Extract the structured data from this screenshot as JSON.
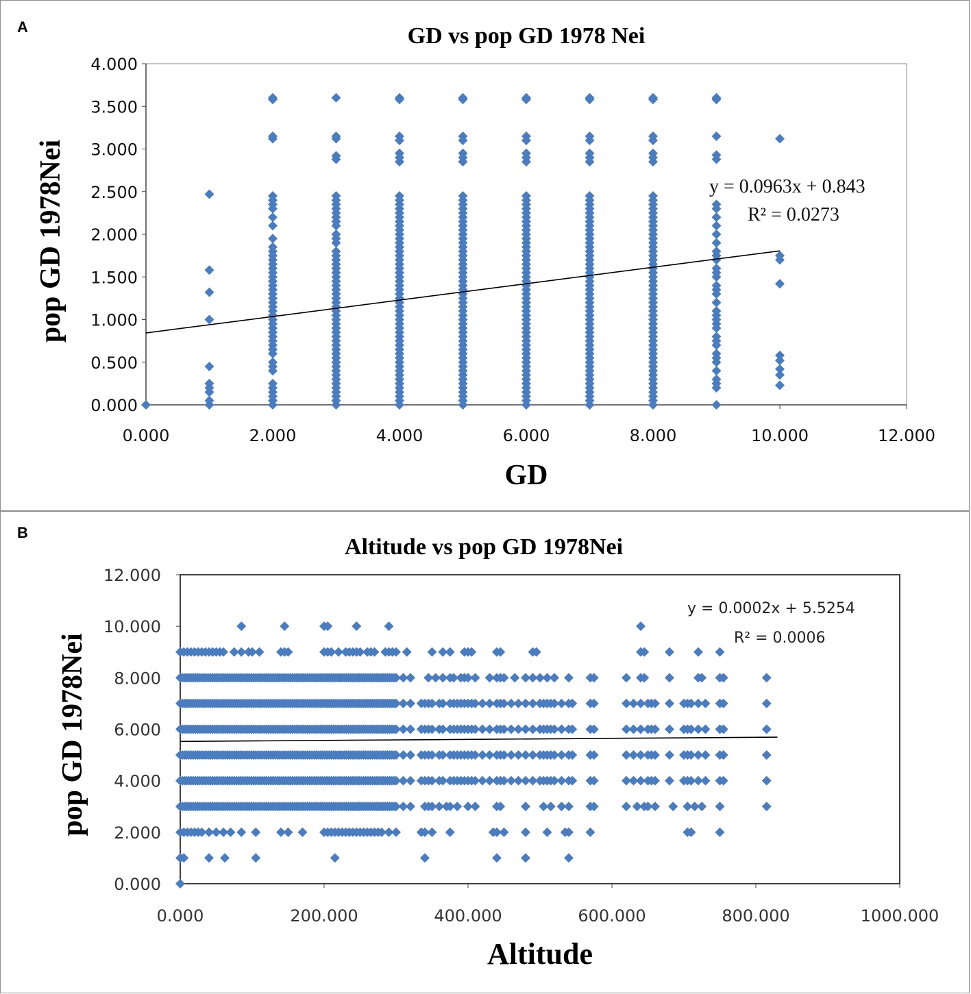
{
  "panels": {
    "a": {
      "letter": "A"
    },
    "b": {
      "letter": "B"
    }
  },
  "colors": {
    "marker": "#4a7cc0",
    "trend": "#000000"
  },
  "chart_data": [
    {
      "type": "scatter",
      "title": "GD vs pop  GD 1978 Nei",
      "xlabel": "GD",
      "ylabel": "pop GD 1978Nei",
      "xlim": [
        0,
        12
      ],
      "ylim": [
        0,
        4
      ],
      "x_ticks": [
        "0.000",
        "2.000",
        "4.000",
        "6.000",
        "8.000",
        "10.000",
        "12.000"
      ],
      "y_ticks": [
        "0.000",
        "0.500",
        "1.000",
        "1.500",
        "2.000",
        "2.500",
        "3.000",
        "3.500",
        "4.000"
      ],
      "equation": "y = 0.0963x   + 0.843",
      "r_squared": "R² = 0.0273",
      "trendline": {
        "slope": 0.0963,
        "intercept": 0.843,
        "x_range": [
          0,
          10
        ]
      },
      "marker": "diamond",
      "columns": [
        {
          "x": 0,
          "y": [
            0
          ]
        },
        {
          "x": 1,
          "y": [
            0,
            0.05,
            0.15,
            0.2,
            0.25,
            0.45,
            1.0,
            1.32,
            1.58,
            2.47
          ]
        },
        {
          "x": 2,
          "y": [
            0,
            0.05,
            0.1,
            0.15,
            0.2,
            0.25,
            0.4,
            0.45,
            0.5,
            0.6,
            0.65,
            0.7,
            0.75,
            0.8,
            0.85,
            0.9,
            0.95,
            1.0,
            1.05,
            1.1,
            1.15,
            1.2,
            1.25,
            1.3,
            1.35,
            1.4,
            1.45,
            1.5,
            1.55,
            1.6,
            1.65,
            1.7,
            1.75,
            1.8,
            1.85,
            1.95,
            2.1,
            2.2,
            2.3,
            2.35,
            2.4,
            2.45,
            3.12,
            3.15,
            3.58,
            3.6
          ]
        },
        {
          "x": 3,
          "y": [
            0,
            0.05,
            0.1,
            0.15,
            0.2,
            0.25,
            0.3,
            0.35,
            0.4,
            0.45,
            0.5,
            0.55,
            0.6,
            0.65,
            0.7,
            0.75,
            0.8,
            0.85,
            0.9,
            0.95,
            1.0,
            1.05,
            1.1,
            1.15,
            1.2,
            1.25,
            1.3,
            1.35,
            1.4,
            1.45,
            1.5,
            1.55,
            1.6,
            1.65,
            1.7,
            1.75,
            1.8,
            1.9,
            1.95,
            2.0,
            2.1,
            2.15,
            2.2,
            2.25,
            2.3,
            2.35,
            2.4,
            2.45,
            2.88,
            2.92,
            3.12,
            3.15,
            3.6
          ]
        },
        {
          "x": 4,
          "y": [
            0,
            0.05,
            0.1,
            0.15,
            0.2,
            0.25,
            0.3,
            0.35,
            0.4,
            0.45,
            0.5,
            0.55,
            0.6,
            0.65,
            0.7,
            0.75,
            0.8,
            0.85,
            0.9,
            0.95,
            1.0,
            1.05,
            1.1,
            1.15,
            1.2,
            1.25,
            1.3,
            1.35,
            1.4,
            1.45,
            1.5,
            1.55,
            1.6,
            1.65,
            1.7,
            1.75,
            1.8,
            1.85,
            1.9,
            1.95,
            2.0,
            2.05,
            2.1,
            2.15,
            2.2,
            2.25,
            2.3,
            2.35,
            2.4,
            2.45,
            2.85,
            2.9,
            2.95,
            3.1,
            3.15,
            3.58,
            3.6
          ]
        },
        {
          "x": 5,
          "y": [
            0,
            0.05,
            0.1,
            0.15,
            0.2,
            0.25,
            0.3,
            0.35,
            0.4,
            0.45,
            0.5,
            0.55,
            0.6,
            0.65,
            0.7,
            0.75,
            0.8,
            0.85,
            0.9,
            0.95,
            1.0,
            1.05,
            1.1,
            1.15,
            1.2,
            1.25,
            1.3,
            1.35,
            1.4,
            1.45,
            1.5,
            1.55,
            1.6,
            1.65,
            1.7,
            1.75,
            1.8,
            1.85,
            1.9,
            1.95,
            2.0,
            2.05,
            2.1,
            2.15,
            2.2,
            2.25,
            2.3,
            2.35,
            2.4,
            2.45,
            2.85,
            2.9,
            2.95,
            3.1,
            3.15,
            3.58,
            3.6
          ]
        },
        {
          "x": 6,
          "y": [
            0,
            0.05,
            0.1,
            0.15,
            0.2,
            0.25,
            0.3,
            0.35,
            0.4,
            0.45,
            0.5,
            0.55,
            0.6,
            0.65,
            0.7,
            0.75,
            0.8,
            0.85,
            0.9,
            0.95,
            1.0,
            1.05,
            1.1,
            1.15,
            1.2,
            1.25,
            1.3,
            1.35,
            1.4,
            1.45,
            1.5,
            1.55,
            1.6,
            1.65,
            1.7,
            1.75,
            1.8,
            1.85,
            1.9,
            1.95,
            2.0,
            2.05,
            2.1,
            2.15,
            2.2,
            2.25,
            2.3,
            2.35,
            2.4,
            2.45,
            2.85,
            2.9,
            2.95,
            3.1,
            3.15,
            3.58,
            3.6
          ]
        },
        {
          "x": 7,
          "y": [
            0,
            0.05,
            0.1,
            0.15,
            0.2,
            0.25,
            0.3,
            0.35,
            0.4,
            0.45,
            0.5,
            0.55,
            0.6,
            0.65,
            0.7,
            0.75,
            0.8,
            0.85,
            0.9,
            0.95,
            1.0,
            1.05,
            1.1,
            1.15,
            1.2,
            1.25,
            1.3,
            1.35,
            1.4,
            1.45,
            1.5,
            1.55,
            1.6,
            1.65,
            1.7,
            1.75,
            1.8,
            1.85,
            1.9,
            1.95,
            2.0,
            2.05,
            2.1,
            2.15,
            2.2,
            2.25,
            2.3,
            2.35,
            2.4,
            2.45,
            2.85,
            2.9,
            2.95,
            3.1,
            3.15,
            3.58,
            3.6
          ]
        },
        {
          "x": 8,
          "y": [
            0,
            0.05,
            0.1,
            0.15,
            0.2,
            0.25,
            0.3,
            0.35,
            0.4,
            0.45,
            0.5,
            0.55,
            0.6,
            0.65,
            0.7,
            0.75,
            0.8,
            0.85,
            0.9,
            0.95,
            1.0,
            1.05,
            1.1,
            1.15,
            1.2,
            1.25,
            1.3,
            1.35,
            1.4,
            1.45,
            1.5,
            1.55,
            1.6,
            1.65,
            1.7,
            1.75,
            1.8,
            1.85,
            1.9,
            1.95,
            2.0,
            2.05,
            2.1,
            2.15,
            2.2,
            2.25,
            2.3,
            2.35,
            2.4,
            2.45,
            2.85,
            2.9,
            2.95,
            3.1,
            3.15,
            3.58,
            3.6
          ]
        },
        {
          "x": 9,
          "y": [
            0,
            0.2,
            0.25,
            0.3,
            0.4,
            0.5,
            0.55,
            0.6,
            0.7,
            0.75,
            0.8,
            0.9,
            0.95,
            1.0,
            1.05,
            1.1,
            1.2,
            1.3,
            1.35,
            1.4,
            1.5,
            1.55,
            1.6,
            1.7,
            1.75,
            1.8,
            1.9,
            2.0,
            2.1,
            2.2,
            2.3,
            2.35,
            2.88,
            2.93,
            3.15,
            3.58,
            3.6
          ]
        },
        {
          "x": 10,
          "y": [
            0.23,
            0.35,
            0.42,
            0.52,
            0.58,
            1.42,
            1.7,
            1.75,
            3.12
          ]
        }
      ]
    },
    {
      "type": "scatter",
      "title": "Altitude  vs pop  GD 1978Nei",
      "xlabel": "Altitude",
      "ylabel": "pop GD 1978Nei",
      "xlim": [
        0,
        1000
      ],
      "ylim": [
        0,
        12
      ],
      "x_ticks": [
        "0.000",
        "200.000",
        "400.000",
        "600.000",
        "800.000",
        "1000.000"
      ],
      "y_ticks": [
        "0.000",
        "2.000",
        "4.000",
        "6.000",
        "8.000",
        "10.000",
        "12.000"
      ],
      "equation": "y = 0.0002x + 5.5254",
      "r_squared": "R² = 0.0006",
      "trendline": {
        "slope": 0.0002,
        "intercept": 5.5254,
        "x_range": [
          0,
          830
        ]
      },
      "marker": "diamond",
      "rows": [
        {
          "y": 0,
          "x": [
            0
          ]
        },
        {
          "y": 1,
          "x": [
            0,
            5,
            40,
            62,
            105,
            215,
            340,
            440,
            480,
            540
          ]
        },
        {
          "y": 2,
          "x": [
            0,
            5,
            10,
            15,
            20,
            25,
            30,
            40,
            50,
            60,
            70,
            85,
            105,
            140,
            150,
            170,
            200,
            205,
            210,
            215,
            220,
            225,
            230,
            235,
            240,
            245,
            250,
            255,
            260,
            265,
            270,
            275,
            280,
            290,
            300,
            335,
            340,
            350,
            375,
            435,
            440,
            450,
            480,
            510,
            535,
            540,
            570,
            705,
            710,
            750
          ]
        },
        {
          "y": 3,
          "range": [
            0,
            300
          ],
          "extra": [
            310,
            320,
            340,
            345,
            350,
            360,
            370,
            375,
            385,
            400,
            410,
            440,
            445,
            480,
            505,
            515,
            530,
            540,
            570,
            575,
            620,
            635,
            645,
            650,
            660,
            685,
            705,
            715,
            725,
            750,
            815
          ]
        },
        {
          "y": 4,
          "range": [
            0,
            300
          ],
          "extra": [
            310,
            320,
            335,
            340,
            345,
            350,
            360,
            365,
            375,
            380,
            385,
            390,
            395,
            400,
            405,
            410,
            420,
            430,
            440,
            445,
            450,
            460,
            470,
            480,
            490,
            500,
            505,
            510,
            515,
            520,
            530,
            540,
            545,
            570,
            575,
            620,
            630,
            640,
            650,
            655,
            660,
            680,
            700,
            705,
            710,
            720,
            730,
            750,
            755,
            815
          ]
        },
        {
          "y": 5,
          "range": [
            0,
            300
          ],
          "extra": [
            310,
            320,
            335,
            340,
            345,
            350,
            360,
            365,
            375,
            380,
            385,
            390,
            395,
            400,
            405,
            410,
            420,
            430,
            440,
            445,
            450,
            460,
            470,
            480,
            490,
            500,
            505,
            510,
            515,
            520,
            530,
            540,
            545,
            570,
            575,
            620,
            630,
            640,
            650,
            655,
            660,
            680,
            700,
            705,
            710,
            720,
            730,
            750,
            755,
            815
          ]
        },
        {
          "y": 6,
          "range": [
            0,
            300
          ],
          "extra": [
            310,
            320,
            335,
            340,
            345,
            350,
            360,
            365,
            375,
            380,
            385,
            390,
            395,
            400,
            405,
            410,
            420,
            430,
            440,
            445,
            450,
            460,
            470,
            480,
            490,
            500,
            505,
            510,
            515,
            520,
            530,
            540,
            545,
            570,
            575,
            620,
            630,
            640,
            650,
            655,
            660,
            680,
            700,
            705,
            710,
            720,
            730,
            750,
            755,
            815
          ]
        },
        {
          "y": 7,
          "range": [
            0,
            300
          ],
          "extra": [
            310,
            320,
            335,
            340,
            345,
            350,
            360,
            365,
            375,
            380,
            385,
            390,
            395,
            400,
            405,
            410,
            420,
            430,
            440,
            445,
            450,
            460,
            470,
            480,
            490,
            500,
            505,
            510,
            515,
            520,
            530,
            540,
            545,
            570,
            575,
            620,
            630,
            640,
            650,
            655,
            660,
            680,
            700,
            705,
            710,
            720,
            730,
            750,
            755,
            815
          ]
        },
        {
          "y": 8,
          "range": [
            0,
            300
          ],
          "extra": [
            310,
            320,
            345,
            355,
            365,
            375,
            380,
            390,
            395,
            400,
            410,
            430,
            440,
            445,
            450,
            465,
            480,
            490,
            500,
            510,
            520,
            540,
            570,
            575,
            620,
            640,
            645,
            680,
            720,
            725,
            750,
            755,
            815
          ]
        },
        {
          "y": 9,
          "x": [
            0,
            5,
            10,
            15,
            20,
            25,
            30,
            35,
            40,
            45,
            50,
            55,
            60,
            75,
            85,
            95,
            100,
            110,
            140,
            145,
            150,
            200,
            205,
            210,
            220,
            230,
            235,
            240,
            245,
            250,
            260,
            265,
            270,
            285,
            290,
            295,
            300,
            315,
            350,
            365,
            375,
            395,
            400,
            405,
            440,
            445,
            490,
            495,
            640,
            645,
            680,
            720,
            750
          ]
        },
        {
          "y": 10,
          "x": [
            85,
            145,
            200,
            205,
            245,
            290,
            640
          ]
        }
      ]
    }
  ]
}
